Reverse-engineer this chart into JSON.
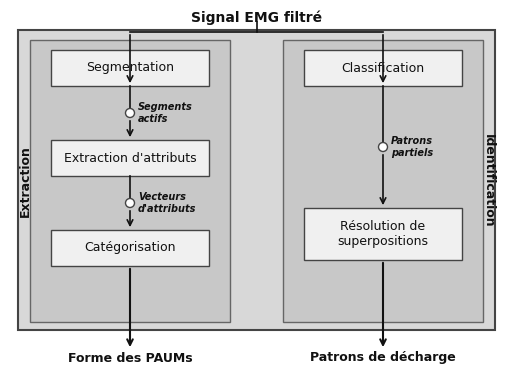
{
  "title": "Signal EMG filtré",
  "left_panel_label": "Extraction",
  "right_panel_label": "Identification",
  "left_boxes": [
    "Segmentation",
    "Extraction d'attributs",
    "Catégorisation"
  ],
  "right_boxes": [
    "Classification",
    "Résolution de\nsuperpositions"
  ],
  "left_connector1_label": "Segments\nactifs",
  "left_connector2_label": "Vecteurs\nd'attributs",
  "right_connector_label": "Patrons\npartiels",
  "output_left": "Forme des PAUMs",
  "output_right": "Patrons de décharge",
  "bg_color": "#ffffff",
  "outer_fill": "#d8d8d8",
  "outer_edge": "#444444",
  "panel_fill": "#c8c8c8",
  "panel_edge": "#666666",
  "box_fill": "#f0f0f0",
  "box_edge": "#444444"
}
